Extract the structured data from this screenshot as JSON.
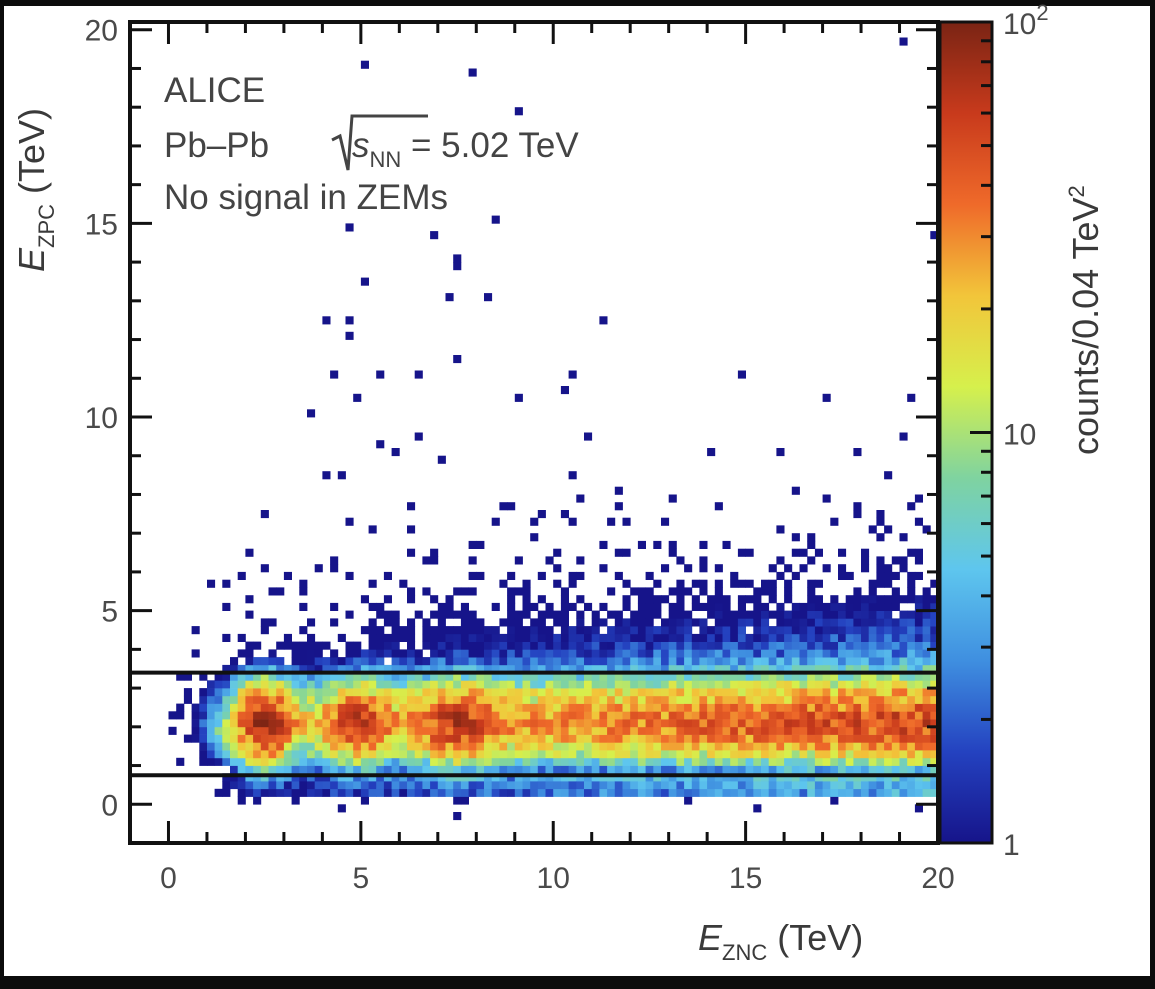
{
  "chart_data": {
    "type": "heatmap",
    "xlabel": {
      "main": "E",
      "sub": "ZNC",
      "unit": " (TeV)"
    },
    "ylabel": {
      "main": "E",
      "sub": "ZPC",
      "unit": " (TeV)"
    },
    "xlim": [
      -1,
      20
    ],
    "ylim": [
      -1,
      20.2
    ],
    "x_ticks": [
      "0",
      "5",
      "10",
      "15",
      "20"
    ],
    "x_tick_values": [
      0,
      5,
      10,
      15,
      20
    ],
    "y_ticks": [
      "0",
      "5",
      "10",
      "15",
      "20"
    ],
    "y_tick_values": [
      0,
      5,
      10,
      15,
      20
    ],
    "bin_width_tev": 0.2,
    "colorbar": {
      "label": "counts/0.04 TeV",
      "label_sup": "2",
      "scale": "log",
      "range": [
        1,
        100
      ],
      "tick_labels": [
        {
          "value": 1,
          "base": "1",
          "exp": ""
        },
        {
          "value": 10,
          "base": "10",
          "exp": ""
        },
        {
          "value": 100,
          "base": "10",
          "exp": "2"
        }
      ],
      "colors": [
        "#16148a",
        "#2442c0",
        "#3f8fe0",
        "#5ec6ee",
        "#7fd3a0",
        "#d6f04c",
        "#f2c53a",
        "#ef6a2a",
        "#c83a1c",
        "#7a2414"
      ]
    },
    "annotations": {
      "experiment": "ALICE",
      "system": "Pb–Pb",
      "energy_symbol": "s",
      "energy_sub": "NN",
      "energy_value": " = 5.02 TeV",
      "selection": "No signal in ZEMs"
    },
    "selection_lines_y": [
      0.75,
      3.4
    ],
    "band": {
      "center_y": 2.1,
      "sigma_y": 0.55,
      "onset_x": 1.3,
      "baseline_counts": [
        12,
        55
      ],
      "peaks": [
        {
          "x": 2.5,
          "counts": 65,
          "width": 0.45
        },
        {
          "x": 4.9,
          "counts": 40,
          "width": 0.5
        },
        {
          "x": 7.5,
          "counts": 40,
          "width": 0.6
        }
      ],
      "halo_counts": [
        0.6,
        5
      ],
      "halo_decay_tev": 1.1,
      "low_tail_counts": 3
    },
    "outlier_points": [
      [
        5.1,
        19.0
      ],
      [
        7.9,
        18.8
      ],
      [
        9.1,
        17.8
      ],
      [
        19.2,
        19.6
      ],
      [
        4.7,
        14.8
      ],
      [
        6.9,
        14.6
      ],
      [
        8.5,
        15.2
      ],
      [
        7.6,
        14.2
      ],
      [
        7.5,
        13.8
      ],
      [
        5.1,
        13.4
      ],
      [
        7.3,
        13.0
      ],
      [
        8.3,
        13.2
      ],
      [
        4.7,
        12.6
      ],
      [
        4.0,
        12.5
      ],
      [
        11.3,
        12.6
      ],
      [
        4.7,
        12.0
      ],
      [
        7.5,
        11.6
      ],
      [
        4.3,
        11.2
      ],
      [
        5.6,
        11.2
      ],
      [
        6.4,
        11.2
      ],
      [
        10.5,
        11.0
      ],
      [
        10.3,
        10.7
      ],
      [
        14.9,
        11.2
      ],
      [
        4.9,
        10.6
      ],
      [
        9.1,
        10.4
      ],
      [
        3.7,
        10.2
      ],
      [
        17.1,
        10.4
      ],
      [
        19.3,
        10.6
      ],
      [
        10.9,
        9.6
      ],
      [
        5.4,
        9.3
      ],
      [
        6.5,
        9.4
      ],
      [
        5.9,
        9.0
      ],
      [
        7.1,
        8.9
      ],
      [
        10.4,
        8.4
      ],
      [
        4.1,
        8.6
      ],
      [
        4.5,
        8.6
      ],
      [
        14.1,
        9.0
      ],
      [
        15.8,
        9.2
      ],
      [
        17.8,
        9.2
      ],
      [
        19.2,
        9.6
      ],
      [
        2.5,
        7.4
      ],
      [
        8.9,
        7.7
      ],
      [
        11.7,
        8.0
      ],
      [
        19.9,
        14.6
      ],
      [
        6.3,
        7.7
      ],
      [
        5.3,
        7.0
      ],
      [
        9.6,
        7.3
      ],
      [
        13.1,
        7.9
      ],
      [
        16.4,
        8.2
      ],
      [
        18.6,
        8.6
      ]
    ]
  }
}
